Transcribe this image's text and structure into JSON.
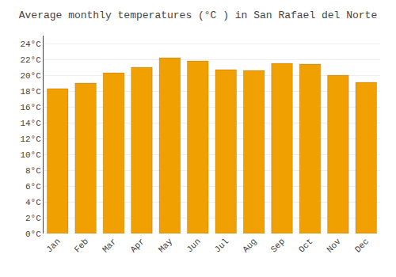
{
  "chart_data": {
    "type": "bar",
    "title": "Average monthly temperatures (°C ) in San Rafael del Norte",
    "categories": [
      "Jan",
      "Feb",
      "Mar",
      "Apr",
      "May",
      "Jun",
      "Jul",
      "Aug",
      "Sep",
      "Oct",
      "Nov",
      "Dec"
    ],
    "values": [
      18.3,
      19.0,
      20.3,
      21.0,
      22.2,
      21.8,
      20.7,
      20.6,
      21.5,
      21.4,
      20.0,
      19.1
    ],
    "color": "#F0A000",
    "ylim": [
      0,
      25
    ],
    "yticks": [
      {
        "value": 0,
        "label": "0°C"
      },
      {
        "value": 2,
        "label": "2°C"
      },
      {
        "value": 4,
        "label": "4°C"
      },
      {
        "value": 6,
        "label": "6°C"
      },
      {
        "value": 8,
        "label": "8°C"
      },
      {
        "value": 10,
        "label": "10°C"
      },
      {
        "value": 12,
        "label": "12°C"
      },
      {
        "value": 14,
        "label": "14°C"
      },
      {
        "value": 16,
        "label": "16°C"
      },
      {
        "value": 18,
        "label": "18°C"
      },
      {
        "value": 20,
        "label": "20°C"
      },
      {
        "value": 22,
        "label": "22°C"
      },
      {
        "value": 24,
        "label": "24°C"
      }
    ],
    "grid": true
  }
}
